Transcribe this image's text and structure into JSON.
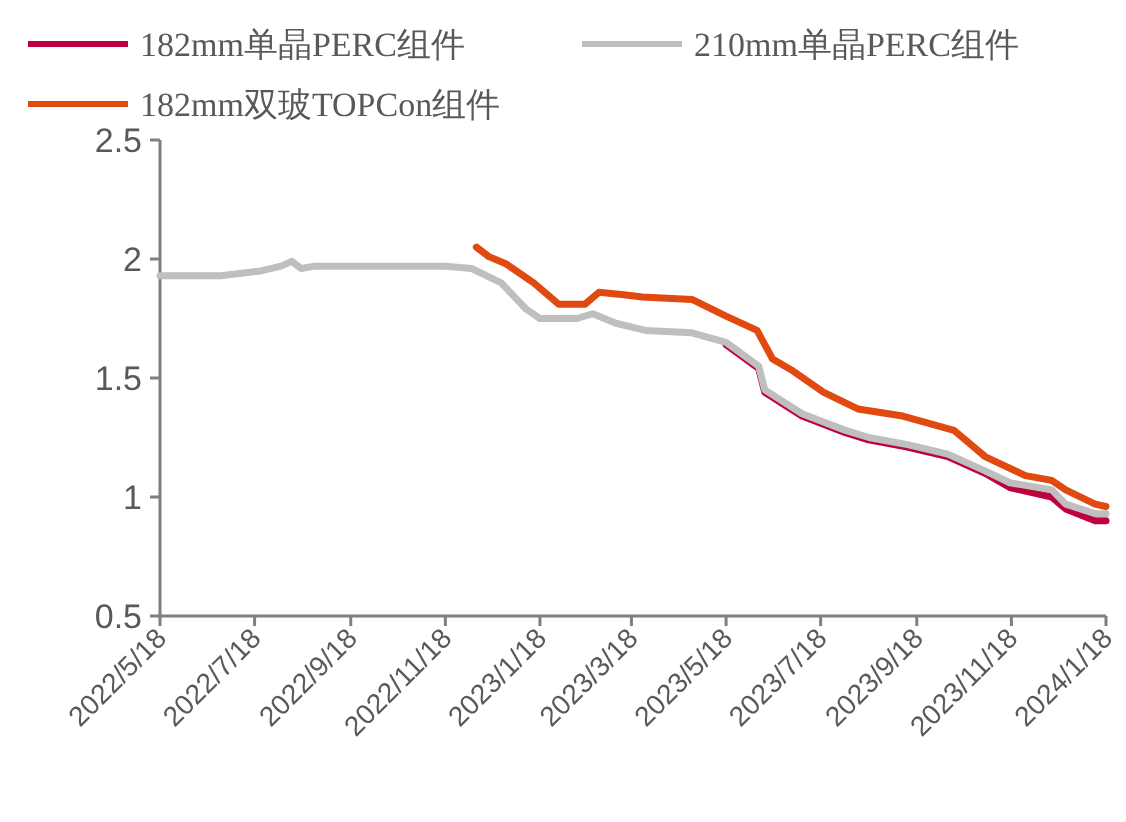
{
  "chart_data": {
    "type": "line",
    "legend": "top",
    "xlim": [
      "2022-05-18",
      "2024-01-18"
    ],
    "ylim": [
      0.5,
      2.5
    ],
    "yticks": [
      0.5,
      1,
      1.5,
      2,
      2.5
    ],
    "xticks": [
      {
        "value": "2022-05-18",
        "label": "2022/5/18"
      },
      {
        "value": "2022-07-18",
        "label": "2022/7/18"
      },
      {
        "value": "2022-09-18",
        "label": "2022/9/18"
      },
      {
        "value": "2022-11-18",
        "label": "2022/11/18"
      },
      {
        "value": "2023-01-18",
        "label": "2023/1/18"
      },
      {
        "value": "2023-03-18",
        "label": "2023/3/18"
      },
      {
        "value": "2023-05-18",
        "label": "2023/5/18"
      },
      {
        "value": "2023-07-18",
        "label": "2023/7/18"
      },
      {
        "value": "2023-09-18",
        "label": "2023/9/18"
      },
      {
        "value": "2023-11-18",
        "label": "2023/11/18"
      },
      {
        "value": "2024-01-18",
        "label": "2024/1/18"
      }
    ],
    "series": [
      {
        "name": "182mm单晶PERC组件",
        "color": "#c0003c",
        "x": [
          "2023-05-18",
          "2023-06-08",
          "2023-06-12",
          "2023-07-06",
          "2023-08-03",
          "2023-08-18",
          "2023-09-12",
          "2023-10-08",
          "2023-11-01",
          "2023-11-17",
          "2023-12-14",
          "2023-12-23",
          "2024-01-11",
          "2024-01-18"
        ],
        "values": [
          1.64,
          1.54,
          1.44,
          1.34,
          1.27,
          1.24,
          1.21,
          1.17,
          1.1,
          1.04,
          1.0,
          0.95,
          0.9,
          0.9
        ]
      },
      {
        "name": "210mm单晶PERC组件",
        "color": "#bfbfbf",
        "x": [
          "2022-05-18",
          "2022-06-26",
          "2022-07-22",
          "2022-08-04",
          "2022-08-11",
          "2022-08-17",
          "2022-08-26",
          "2022-11-18",
          "2022-12-05",
          "2022-12-24",
          "2023-01-09",
          "2023-01-18",
          "2023-02-11",
          "2023-02-21",
          "2023-03-08",
          "2023-03-27",
          "2023-04-26",
          "2023-05-18",
          "2023-06-08",
          "2023-06-12",
          "2023-07-06",
          "2023-08-03",
          "2023-08-18",
          "2023-09-12",
          "2023-10-08",
          "2023-11-01",
          "2023-11-17",
          "2023-12-14",
          "2023-12-23",
          "2024-01-11",
          "2024-01-18"
        ],
        "values": [
          1.93,
          1.93,
          1.95,
          1.97,
          1.99,
          1.96,
          1.97,
          1.97,
          1.96,
          1.9,
          1.79,
          1.75,
          1.75,
          1.77,
          1.73,
          1.7,
          1.69,
          1.65,
          1.55,
          1.45,
          1.35,
          1.28,
          1.25,
          1.22,
          1.18,
          1.11,
          1.06,
          1.03,
          0.97,
          0.93,
          0.93
        ]
      },
      {
        "name": "182mm双玻TOPCon组件",
        "color": "#e04a10",
        "x": [
          "2022-12-08",
          "2022-12-16",
          "2022-12-27",
          "2023-01-14",
          "2023-01-30",
          "2023-02-16",
          "2023-02-25",
          "2023-03-13",
          "2023-03-25",
          "2023-04-26",
          "2023-05-18",
          "2023-06-07",
          "2023-06-17",
          "2023-06-30",
          "2023-07-20",
          "2023-08-11",
          "2023-09-09",
          "2023-10-12",
          "2023-11-01",
          "2023-11-27",
          "2023-12-14",
          "2023-12-23",
          "2024-01-11",
          "2024-01-18"
        ],
        "values": [
          2.05,
          2.01,
          1.98,
          1.9,
          1.81,
          1.81,
          1.86,
          1.85,
          1.84,
          1.83,
          1.76,
          1.7,
          1.58,
          1.53,
          1.44,
          1.37,
          1.34,
          1.28,
          1.17,
          1.09,
          1.07,
          1.03,
          0.97,
          0.96
        ]
      }
    ]
  }
}
